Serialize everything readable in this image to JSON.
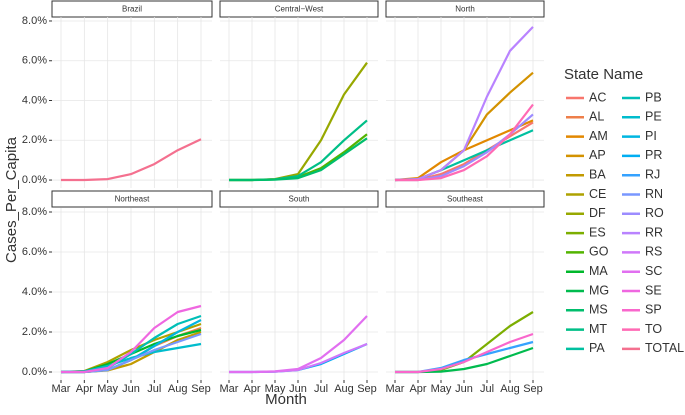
{
  "chart_data": {
    "type": "line",
    "x_label": "Month",
    "y_label": "Cases_Per_Capita",
    "grid": true,
    "categories": [
      "Mar",
      "Apr",
      "May",
      "Jun",
      "Jul",
      "Aug",
      "Sep"
    ],
    "ylim": [
      -0.4,
      8.2
    ],
    "yticks": [
      {
        "value": 0,
        "label": "0.0%"
      },
      {
        "value": 2,
        "label": "2.0%"
      },
      {
        "value": 4,
        "label": "4.0%"
      },
      {
        "value": 6,
        "label": "6.0%"
      },
      {
        "value": 8,
        "label": "8.0%"
      }
    ],
    "legend_title": "State Name",
    "legend": [
      {
        "name": "AC",
        "color": "#f8766d"
      },
      {
        "name": "AL",
        "color": "#ee7f4a"
      },
      {
        "name": "AM",
        "color": "#e28800"
      },
      {
        "name": "AP",
        "color": "#d39200"
      },
      {
        "name": "BA",
        "color": "#c29a00"
      },
      {
        "name": "CE",
        "color": "#aea200"
      },
      {
        "name": "DF",
        "color": "#97a800"
      },
      {
        "name": "ES",
        "color": "#7cae00"
      },
      {
        "name": "GO",
        "color": "#53b400"
      },
      {
        "name": "MA",
        "color": "#00b82b"
      },
      {
        "name": "MG",
        "color": "#00bb4e"
      },
      {
        "name": "MS",
        "color": "#00be6c"
      },
      {
        "name": "MT",
        "color": "#00bf87"
      },
      {
        "name": "PA",
        "color": "#00c0a0"
      },
      {
        "name": "PB",
        "color": "#00bfb7"
      },
      {
        "name": "PE",
        "color": "#00bccd"
      },
      {
        "name": "PI",
        "color": "#00b6e1"
      },
      {
        "name": "PR",
        "color": "#00aef2"
      },
      {
        "name": "RJ",
        "color": "#35a2ff"
      },
      {
        "name": "RN",
        "color": "#7997ff"
      },
      {
        "name": "RO",
        "color": "#9c8cff"
      },
      {
        "name": "RR",
        "color": "#b983ff"
      },
      {
        "name": "RS",
        "color": "#cf78fa"
      },
      {
        "name": "SC",
        "color": "#e16ff0"
      },
      {
        "name": "SE",
        "color": "#ef67e0"
      },
      {
        "name": "SP",
        "color": "#f967cc"
      },
      {
        "name": "TO",
        "color": "#ff6ab4"
      },
      {
        "name": "TOTAL",
        "color": "#f4708f"
      }
    ],
    "facets": [
      {
        "title": "Brazil",
        "series": [
          {
            "name": "TOTAL",
            "values": [
              0,
              0,
              0.05,
              0.3,
              0.8,
              1.5,
              2.05
            ]
          }
        ]
      },
      {
        "title": "Central−West",
        "series": [
          {
            "name": "DF",
            "values": [
              0,
              0,
              0.05,
              0.3,
              2.0,
              4.3,
              5.9
            ]
          },
          {
            "name": "GO",
            "values": [
              0,
              0,
              0.03,
              0.15,
              0.6,
              1.4,
              2.3
            ]
          },
          {
            "name": "MT",
            "values": [
              0,
              0,
              0.03,
              0.2,
              0.9,
              2.0,
              3.0
            ]
          },
          {
            "name": "MS",
            "values": [
              0,
              0,
              0.02,
              0.1,
              0.5,
              1.3,
              2.1
            ]
          }
        ]
      },
      {
        "title": "North",
        "series": [
          {
            "name": "AC",
            "values": [
              0,
              0,
              0.3,
              0.8,
              1.5,
              2.2,
              2.9
            ]
          },
          {
            "name": "AM",
            "values": [
              0,
              0.1,
              0.9,
              1.5,
              2.0,
              2.5,
              3.0
            ]
          },
          {
            "name": "AP",
            "values": [
              0,
              0.05,
              0.5,
              1.5,
              3.3,
              4.4,
              5.4
            ]
          },
          {
            "name": "PA",
            "values": [
              0,
              0.05,
              0.5,
              1.0,
              1.5,
              2.0,
              2.5
            ]
          },
          {
            "name": "RO",
            "values": [
              0,
              0,
              0.2,
              0.7,
              1.4,
              2.3,
              3.3
            ]
          },
          {
            "name": "RR",
            "values": [
              0,
              0.05,
              0.5,
              1.5,
              4.2,
              6.5,
              7.7
            ]
          },
          {
            "name": "TO",
            "values": [
              0,
              0,
              0.1,
              0.5,
              1.2,
              2.3,
              3.8
            ]
          }
        ]
      },
      {
        "title": "Northeast",
        "series": [
          {
            "name": "AL",
            "values": [
              0,
              0,
              0.1,
              0.6,
              1.3,
              1.8,
              2.2
            ]
          },
          {
            "name": "BA",
            "values": [
              0,
              0,
              0.08,
              0.4,
              1.0,
              1.6,
              2.0
            ]
          },
          {
            "name": "CE",
            "values": [
              0,
              0.05,
              0.5,
              1.1,
              1.6,
              2.0,
              2.4
            ]
          },
          {
            "name": "MA",
            "values": [
              0,
              0.03,
              0.4,
              0.9,
              1.4,
              1.8,
              2.1
            ]
          },
          {
            "name": "PB",
            "values": [
              0,
              0,
              0.2,
              0.9,
              1.7,
              2.4,
              2.8
            ]
          },
          {
            "name": "PE",
            "values": [
              0,
              0.03,
              0.3,
              0.7,
              1.0,
              1.2,
              1.4
            ]
          },
          {
            "name": "PI",
            "values": [
              0,
              0,
              0.1,
              0.6,
              1.3,
              2.0,
              2.6
            ]
          },
          {
            "name": "RN",
            "values": [
              0,
              0,
              0.1,
              0.6,
              1.1,
              1.5,
              1.9
            ]
          },
          {
            "name": "SE",
            "values": [
              0,
              0,
              0.2,
              1.0,
              2.2,
              3.0,
              3.3
            ]
          }
        ]
      },
      {
        "title": "South",
        "series": [
          {
            "name": "PR",
            "values": [
              0,
              0,
              0.02,
              0.1,
              0.4,
              0.9,
              1.4
            ]
          },
          {
            "name": "RS",
            "values": [
              0,
              0,
              0.02,
              0.1,
              0.45,
              0.95,
              1.4
            ]
          },
          {
            "name": "SC",
            "values": [
              0,
              0,
              0.03,
              0.15,
              0.7,
              1.6,
              2.8
            ]
          }
        ]
      },
      {
        "title": "Southeast",
        "series": [
          {
            "name": "ES",
            "values": [
              0,
              0,
              0.1,
              0.5,
              1.4,
              2.3,
              3.0
            ]
          },
          {
            "name": "MG",
            "values": [
              0,
              0,
              0.02,
              0.15,
              0.4,
              0.8,
              1.2
            ]
          },
          {
            "name": "RJ",
            "values": [
              0,
              0,
              0.2,
              0.6,
              0.9,
              1.2,
              1.5
            ]
          },
          {
            "name": "SP",
            "values": [
              0,
              0,
              0.15,
              0.5,
              1.0,
              1.5,
              1.9
            ]
          }
        ]
      }
    ]
  }
}
